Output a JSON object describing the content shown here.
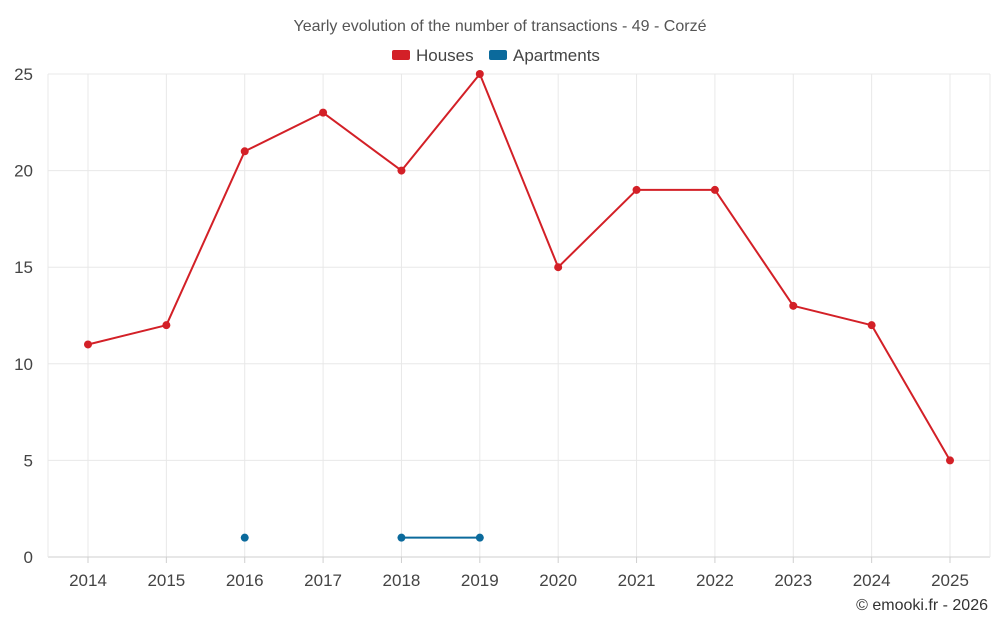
{
  "chart_data": {
    "type": "line",
    "title": "Yearly evolution of the number of transactions - 49 - Corzé",
    "categories": [
      "2014",
      "2015",
      "2016",
      "2017",
      "2018",
      "2019",
      "2020",
      "2021",
      "2022",
      "2023",
      "2024",
      "2025"
    ],
    "series": [
      {
        "name": "Houses",
        "color": "#d32027",
        "values": [
          11,
          12,
          21,
          23,
          20,
          25,
          15,
          19,
          19,
          13,
          12,
          5
        ]
      },
      {
        "name": "Apartments",
        "color": "#0b6a9c",
        "values": [
          null,
          null,
          1,
          null,
          1,
          1,
          null,
          null,
          null,
          null,
          null,
          null
        ]
      }
    ],
    "ylim": [
      0,
      25
    ],
    "yticks": [
      0,
      5,
      10,
      15,
      20,
      25
    ],
    "grid": true,
    "legend": "top-center",
    "xlabel": "",
    "ylabel": ""
  },
  "footer": {
    "copyright": "© emooki.fr - 2026"
  }
}
